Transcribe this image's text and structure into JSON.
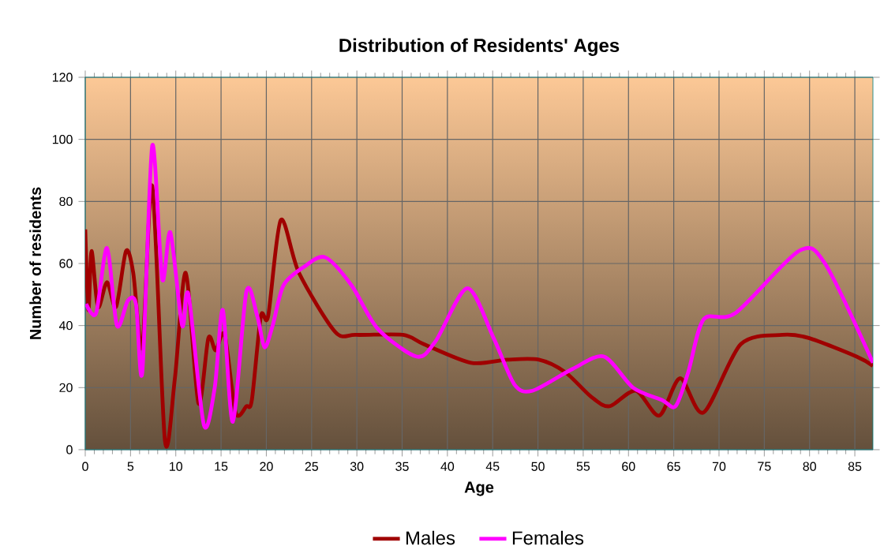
{
  "chart_data": {
    "type": "line",
    "title": "Distribution of Residents' Ages",
    "xlabel": "Age",
    "ylabel": "Number of residents",
    "xlim": [
      0,
      87
    ],
    "xticks": [
      0,
      5,
      10,
      15,
      20,
      25,
      30,
      35,
      40,
      45,
      50,
      55,
      60,
      65,
      70,
      75,
      80,
      85
    ],
    "ylim": [
      0,
      120
    ],
    "yticks": [
      0,
      20,
      40,
      60,
      80,
      100,
      120
    ],
    "grid": true,
    "legend": "bottom",
    "marker": "none",
    "line_style": "solid",
    "series": [
      {
        "name": "Males",
        "color": "#a00000",
        "x": [
          0,
          0.35,
          0.7,
          1.4,
          2.4,
          3.4,
          4.5,
          5.3,
          6.3,
          7.4,
          8.8,
          9.9,
          11.1,
          12.5,
          13.6,
          14.4,
          15.4,
          16.6,
          17.8,
          18.4,
          19.4,
          20.2,
          21.6,
          23.6,
          27.6,
          29.9,
          35.1,
          37.4,
          42.6,
          46.6,
          50.1,
          53,
          55.9,
          57.9,
          60.8,
          63.4,
          65.7,
          68.3,
          72.4,
          77,
          79.9,
          85.2,
          87
        ],
        "values": [
          71,
          45,
          64,
          46,
          54,
          46,
          64,
          57,
          33,
          85,
          3,
          23,
          57,
          15,
          36,
          32,
          37,
          12,
          14,
          16,
          43,
          43,
          74,
          57,
          38,
          37,
          37,
          34,
          28,
          29,
          29,
          25,
          17,
          14,
          19,
          11,
          23,
          12,
          34,
          37,
          36,
          30,
          27
        ]
      },
      {
        "name": "Females",
        "color": "#ff00ff",
        "x": [
          0.1,
          1.2,
          2.4,
          3.5,
          4.7,
          5.6,
          6.3,
          7.4,
          8.5,
          9.4,
          10.7,
          11.4,
          13.1,
          14.3,
          15.2,
          16.3,
          17.8,
          19,
          19.8,
          20.7,
          21.9,
          24.2,
          26.5,
          29.4,
          32.3,
          36.6,
          38.7,
          42.2,
          45.1,
          47.4,
          49.4,
          53.8,
          57.3,
          60.5,
          63.7,
          65.2,
          66.6,
          68.3,
          71.8,
          78.8,
          81.7,
          87
        ],
        "values": [
          47,
          44,
          65,
          40,
          48,
          47,
          25,
          98,
          55,
          70,
          40,
          50,
          8,
          20,
          45,
          9,
          51,
          43,
          33,
          40,
          53,
          59,
          62,
          53,
          39,
          30,
          35,
          52,
          36,
          21,
          19,
          26,
          30,
          20,
          16,
          14,
          25,
          42,
          44,
          64,
          60,
          28
        ]
      }
    ]
  }
}
